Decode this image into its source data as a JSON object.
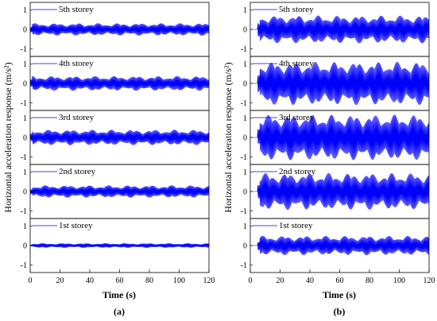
{
  "figure": {
    "panel_a_caption": "(a)",
    "panel_b_caption": "(b)"
  },
  "chart_data": [
    {
      "panel": "(a)",
      "type": "line",
      "xlabel": "Time (s)",
      "ylabel": "Horizontal acceleration response (m/s²)",
      "xlim": [
        0,
        120
      ],
      "ylim": [
        -1.4,
        1.4
      ],
      "xticks": [
        "0",
        "20",
        "40",
        "60",
        "80",
        "100",
        "120"
      ],
      "yticks": [
        "1",
        "0",
        "-1"
      ],
      "color": "#0000ff",
      "grid": false,
      "subplots": [
        {
          "label": "5th storey",
          "amplitude": 0.32,
          "onset_s": 0
        },
        {
          "label": "4th storey",
          "amplitude": 0.38,
          "onset_s": 0
        },
        {
          "label": "3rd storey",
          "amplitude": 0.4,
          "onset_s": 0
        },
        {
          "label": "2nd storey",
          "amplitude": 0.32,
          "onset_s": 0
        },
        {
          "label": "1st storey",
          "amplitude": 0.12,
          "onset_s": 0
        }
      ]
    },
    {
      "panel": "(b)",
      "type": "line",
      "xlabel": "Time (s)",
      "ylabel": "Horizontal acceleration response (m/s²)",
      "xlim": [
        0,
        120
      ],
      "ylim": [
        -1.4,
        1.4
      ],
      "xticks": [
        "0",
        "20",
        "40",
        "60",
        "80",
        "100",
        "120"
      ],
      "yticks": [
        "1",
        "0",
        "-1"
      ],
      "color": "#0000ff",
      "grid": false,
      "subplots": [
        {
          "label": "5th storey",
          "amplitude": 0.72,
          "onset_s": 5
        },
        {
          "label": "4th storey",
          "amplitude": 1.12,
          "onset_s": 5
        },
        {
          "label": "3rd storey",
          "amplitude": 1.18,
          "onset_s": 5
        },
        {
          "label": "2nd storey",
          "amplitude": 0.95,
          "onset_s": 5
        },
        {
          "label": "1st storey",
          "amplitude": 0.5,
          "onset_s": 5
        }
      ]
    }
  ]
}
